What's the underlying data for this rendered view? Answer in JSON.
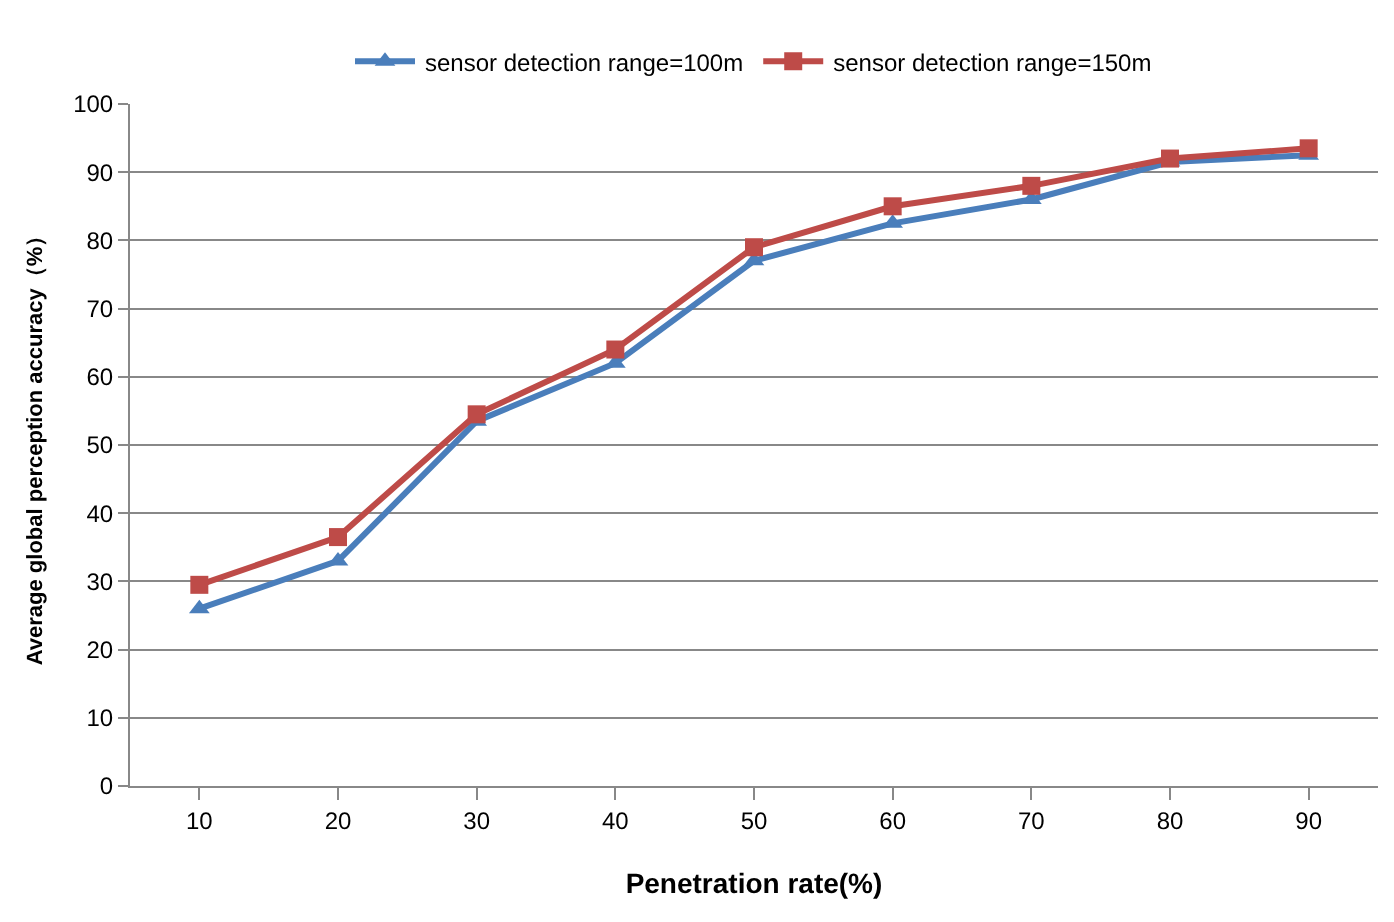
{
  "chart_data": {
    "type": "line",
    "xlabel": "Penetration rate(%)",
    "ylabel": "Average global perception accuracy（%）",
    "categories": [
      "10",
      "20",
      "30",
      "40",
      "50",
      "60",
      "70",
      "80",
      "90"
    ],
    "series": [
      {
        "name": "sensor detection range=100m",
        "color": "#4a7ebb",
        "marker": "triangle",
        "values": [
          26,
          33,
          53.5,
          62,
          77,
          82.5,
          86,
          91.5,
          92.5
        ]
      },
      {
        "name": "sensor detection range=150m",
        "color": "#be4b48",
        "marker": "square",
        "values": [
          29.5,
          36.5,
          54.5,
          64,
          79,
          85,
          88,
          92,
          93.5
        ]
      }
    ],
    "ylim": [
      0,
      100
    ],
    "yticks": [
      0,
      10,
      20,
      30,
      40,
      50,
      60,
      70,
      80,
      90,
      100
    ],
    "grid": "y",
    "legend": "top",
    "line_style": "solid"
  }
}
